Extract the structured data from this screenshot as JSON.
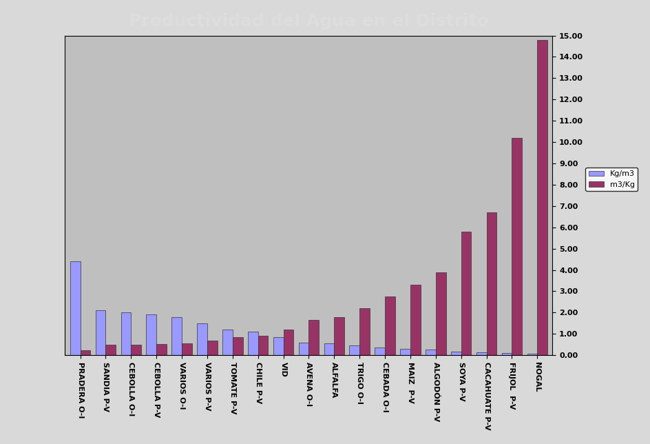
{
  "chart_data": {
    "type": "bar",
    "title": "Productividad del Agua en el Distrito",
    "categories": [
      "PRADERA O-I",
      "SANDIA P-V",
      "CEBOLLA O-I",
      "CEBOLLA P-V",
      "VARIOS O-I",
      "VARIOS P-V",
      "TOMATE P-V",
      "CHILE P-V",
      "VID",
      "AVENA O-I",
      "ALFALFA",
      "TRIGO O-I",
      "CEBADA O-I",
      "MAIZ  P-V",
      "ALGODÓN P-V",
      "SOYA P-V",
      "CACAHUATE P-V",
      "FRIJOL  P-V",
      "NOGAL"
    ],
    "series": [
      {
        "name": "Kg/m3",
        "color": "#9999ff",
        "values": [
          4.4,
          2.1,
          2.0,
          1.9,
          1.8,
          1.5,
          1.2,
          1.1,
          0.85,
          0.6,
          0.55,
          0.45,
          0.35,
          0.3,
          0.25,
          0.17,
          0.15,
          0.1,
          0.07
        ]
      },
      {
        "name": "m3/Kg",
        "color": "#993366",
        "values": [
          0.23,
          0.48,
          0.5,
          0.53,
          0.56,
          0.67,
          0.85,
          0.9,
          1.2,
          1.65,
          1.8,
          2.2,
          2.75,
          3.3,
          3.9,
          5.8,
          6.7,
          10.2,
          14.8
        ]
      }
    ],
    "ylim": [
      0,
      15
    ],
    "yticks": [
      {
        "value": 0,
        "label": "0.00"
      },
      {
        "value": 1,
        "label": "1.00"
      },
      {
        "value": 2,
        "label": "2.00"
      },
      {
        "value": 3,
        "label": "3.00"
      },
      {
        "value": 4,
        "label": "4.00"
      },
      {
        "value": 5,
        "label": "5.00"
      },
      {
        "value": 6,
        "label": "6.00"
      },
      {
        "value": 7,
        "label": "7.00"
      },
      {
        "value": 8,
        "label": "8.00"
      },
      {
        "value": 9,
        "label": "9.00"
      },
      {
        "value": 10,
        "label": "10.00"
      },
      {
        "value": 11,
        "label": "11.00"
      },
      {
        "value": 12,
        "label": "12.00"
      },
      {
        "value": 13,
        "label": "13.00"
      },
      {
        "value": 14,
        "label": "14.00"
      },
      {
        "value": 15,
        "label": "15.00"
      }
    ],
    "legend": "right",
    "grid": false
  }
}
